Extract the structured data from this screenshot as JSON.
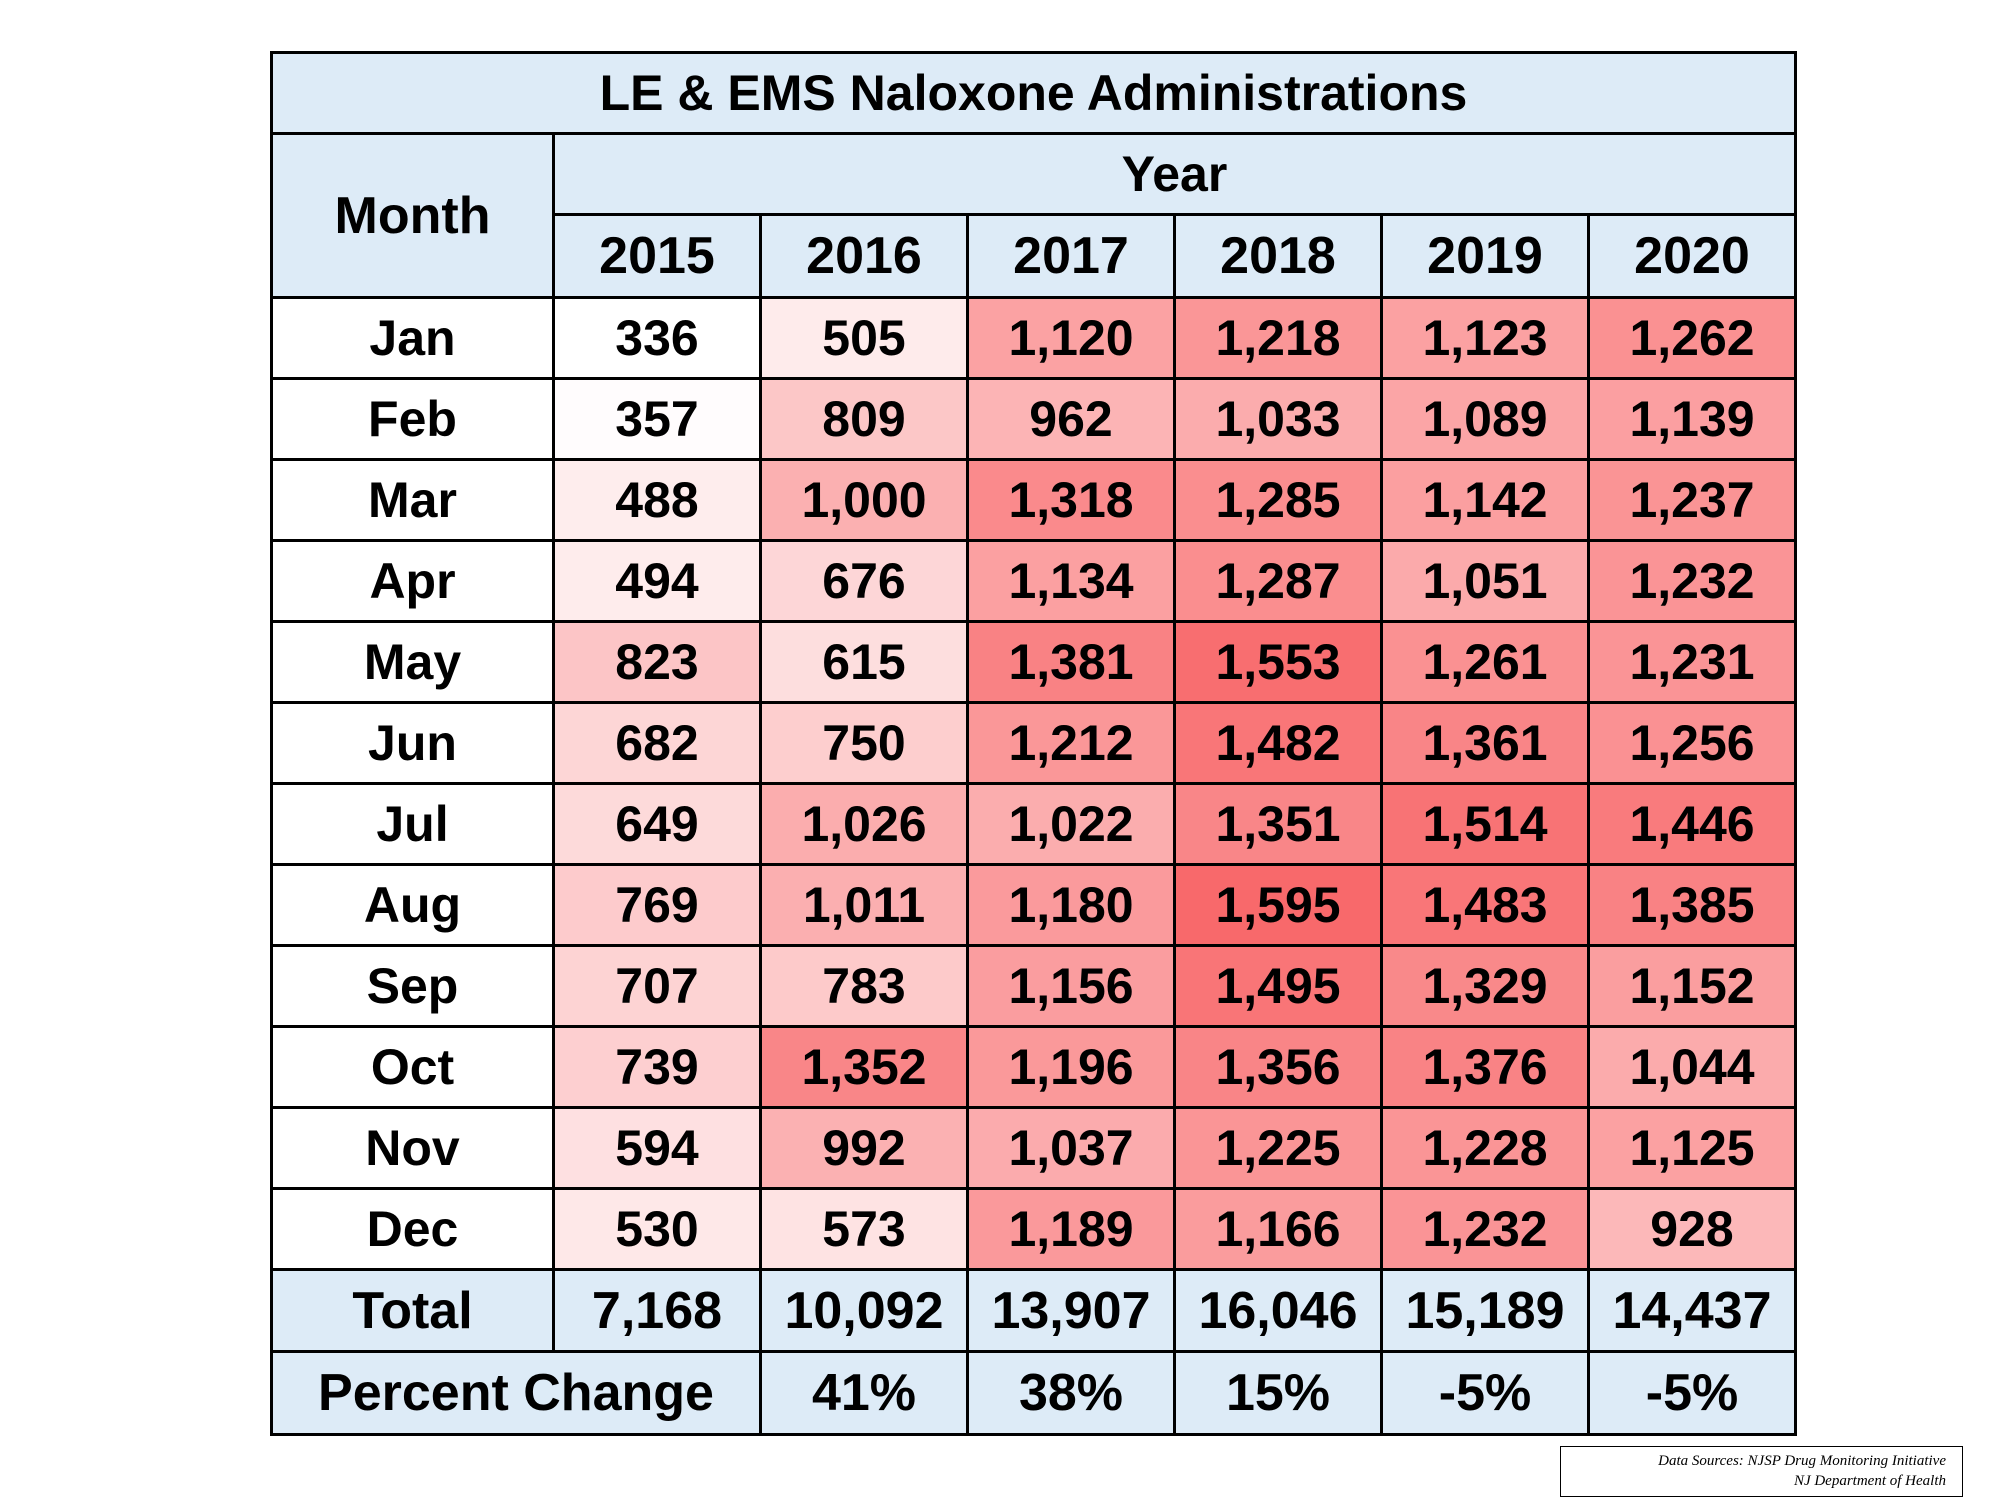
{
  "chart_data": {
    "type": "table",
    "title": "LE & EMS Naloxone Administrations",
    "row_header": "Month",
    "column_group_header": "Year",
    "columns": [
      "2015",
      "2016",
      "2017",
      "2018",
      "2019",
      "2020"
    ],
    "rows": [
      {
        "month": "Jan",
        "values": [
          336,
          505,
          1120,
          1218,
          1123,
          1262
        ],
        "labels": [
          "336",
          "505",
          "1,120",
          "1,218",
          "1,123",
          "1,262"
        ]
      },
      {
        "month": "Feb",
        "values": [
          357,
          809,
          962,
          1033,
          1089,
          1139
        ],
        "labels": [
          "357",
          "809",
          "962",
          "1,033",
          "1,089",
          "1,139"
        ]
      },
      {
        "month": "Mar",
        "values": [
          488,
          1000,
          1318,
          1285,
          1142,
          1237
        ],
        "labels": [
          "488",
          "1,000",
          "1,318",
          "1,285",
          "1,142",
          "1,237"
        ]
      },
      {
        "month": "Apr",
        "values": [
          494,
          676,
          1134,
          1287,
          1051,
          1232
        ],
        "labels": [
          "494",
          "676",
          "1,134",
          "1,287",
          "1,051",
          "1,232"
        ]
      },
      {
        "month": "May",
        "values": [
          823,
          615,
          1381,
          1553,
          1261,
          1231
        ],
        "labels": [
          "823",
          "615",
          "1,381",
          "1,553",
          "1,261",
          "1,231"
        ]
      },
      {
        "month": "Jun",
        "values": [
          682,
          750,
          1212,
          1482,
          1361,
          1256
        ],
        "labels": [
          "682",
          "750",
          "1,212",
          "1,482",
          "1,361",
          "1,256"
        ]
      },
      {
        "month": "Jul",
        "values": [
          649,
          1026,
          1022,
          1351,
          1514,
          1446
        ],
        "labels": [
          "649",
          "1,026",
          "1,022",
          "1,351",
          "1,514",
          "1,446"
        ]
      },
      {
        "month": "Aug",
        "values": [
          769,
          1011,
          1180,
          1595,
          1483,
          1385
        ],
        "labels": [
          "769",
          "1,011",
          "1,180",
          "1,595",
          "1,483",
          "1,385"
        ]
      },
      {
        "month": "Sep",
        "values": [
          707,
          783,
          1156,
          1495,
          1329,
          1152
        ],
        "labels": [
          "707",
          "783",
          "1,156",
          "1,495",
          "1,329",
          "1,152"
        ]
      },
      {
        "month": "Oct",
        "values": [
          739,
          1352,
          1196,
          1356,
          1376,
          1044
        ],
        "labels": [
          "739",
          "1,352",
          "1,196",
          "1,356",
          "1,376",
          "1,044"
        ]
      },
      {
        "month": "Nov",
        "values": [
          594,
          992,
          1037,
          1225,
          1228,
          1125
        ],
        "labels": [
          "594",
          "992",
          "1,037",
          "1,225",
          "1,228",
          "1,125"
        ]
      },
      {
        "month": "Dec",
        "values": [
          530,
          573,
          1189,
          1166,
          1232,
          928
        ],
        "labels": [
          "530",
          "573",
          "1,189",
          "1,166",
          "1,232",
          "928"
        ]
      }
    ],
    "total": {
      "label": "Total",
      "values": [
        7168,
        10092,
        13907,
        16046,
        15189,
        14437
      ],
      "labels": [
        "7,168",
        "10,092",
        "13,907",
        "16,046",
        "15,189",
        "14,437"
      ]
    },
    "percent_change": {
      "label": "Percent Change",
      "values": [
        41,
        38,
        15,
        -5,
        -5
      ],
      "labels": [
        "41%",
        "38%",
        "15%",
        "-5%",
        "-5%"
      ]
    },
    "color_scale": {
      "low": "#ffffff",
      "high": "#f8696b",
      "min": 336,
      "max": 1595
    }
  },
  "source_note": {
    "line1": "Data Sources: NJSP Drug Monitoring Initiative",
    "line2": "NJ Department of Health"
  }
}
